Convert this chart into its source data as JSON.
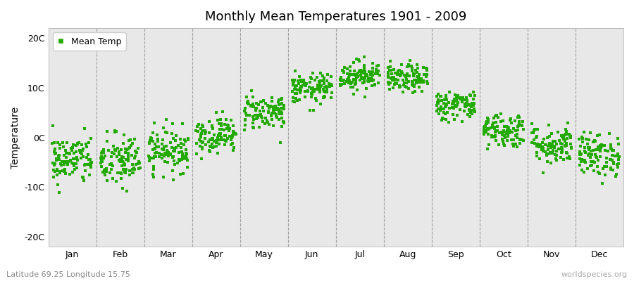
{
  "title": "Monthly Mean Temperatures 1901 - 2009",
  "ylabel": "Temperature",
  "yticks": [
    -20,
    -10,
    0,
    10,
    20
  ],
  "ytick_labels": [
    "-20C",
    "-10C",
    "0C",
    "10C",
    "20C"
  ],
  "ylim": [
    -22,
    22
  ],
  "marker_color": "#22aa00",
  "marker_size": 3,
  "axes_bg_color": "#e8e8e8",
  "fig_bg_color": "#ffffff",
  "subtitle": "Latitude 69.25 Longitude 15.75",
  "watermark": "worldspecies.org",
  "months": [
    "Jan",
    "Feb",
    "Mar",
    "Apr",
    "May",
    "Jun",
    "Jul",
    "Aug",
    "Sep",
    "Oct",
    "Nov",
    "Dec"
  ],
  "month_means": [
    -4.5,
    -4.8,
    -2.5,
    0.5,
    5.2,
    9.8,
    12.5,
    11.8,
    6.5,
    1.5,
    -1.5,
    -3.5
  ],
  "month_stds": [
    2.5,
    2.8,
    2.2,
    1.8,
    1.8,
    1.5,
    1.5,
    1.4,
    1.5,
    1.8,
    2.0,
    2.2
  ],
  "n_years": 109,
  "seed": 42,
  "dashed_line_color": "#999999",
  "spine_color": "#aaaaaa",
  "tick_label_fontsize": 9,
  "ylabel_fontsize": 10,
  "title_fontsize": 13,
  "subtitle_fontsize": 8,
  "watermark_fontsize": 8
}
